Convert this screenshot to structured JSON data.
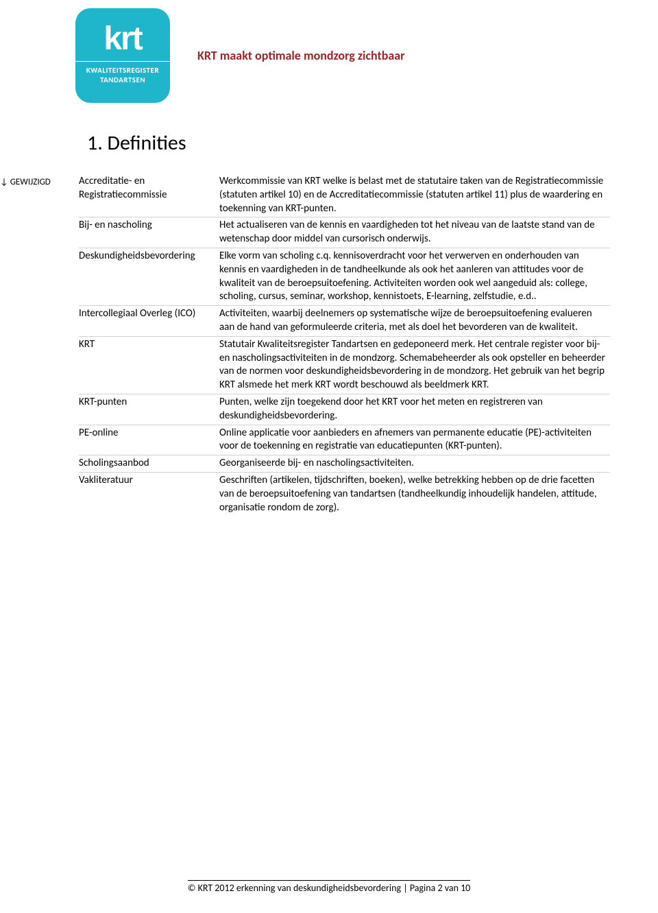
{
  "colors": {
    "tagline": "#9a2626",
    "logo_bg": "#1fb6cc",
    "border": "#d0d0d0"
  },
  "logo": {
    "short": "krt",
    "sub1": "KWALITEITSREGISTER",
    "sub2": "TANDARTSEN"
  },
  "tagline": "KRT maakt optimale mondzorg zichtbaar",
  "side_label": "↓ GEWIJZIGD",
  "heading": "1. Definities",
  "definitions": [
    {
      "term": "Accreditatie- en Registratiecommissie",
      "def": "Werkcommissie van KRT welke is belast met de statutaire taken van de Registratiecommissie (statuten artikel 10) en de Accreditatiecommissie (statuten artikel 11) plus de waardering en toekenning van KRT-punten."
    },
    {
      "term": "Bij- en nascholing",
      "def": "Het actualiseren van de kennis en vaardigheden tot het niveau van de laatste stand van de wetenschap door middel van cursorisch onderwijs."
    },
    {
      "term": "Deskundigheidsbevordering",
      "def": "Elke vorm van scholing c.q. kennisoverdracht voor het verwerven en onderhouden van kennis en vaardigheden in de tandheelkunde als ook het aanleren van attitudes voor de kwaliteit van de beroepsuitoefening. Activiteiten worden ook wel aangeduid als: college, scholing, cursus, seminar, workshop, kennistoets, E-learning, zelfstudie, e.d.."
    },
    {
      "term": "Intercollegiaal Overleg (ICO)",
      "def": "Activiteiten, waarbij deelnemers op systematische wijze de beroepsuitoefening evalueren aan de hand van geformuleerde criteria, met als doel het bevorderen van de kwaliteit."
    },
    {
      "term": "KRT",
      "def": "Statutair Kwaliteitsregister Tandartsen en gedeponeerd merk. Het centrale register voor bij- en nascholingsactiviteiten in de mondzorg. Schemabeheerder als ook opsteller en beheerder van de normen voor deskundigheidsbevordering in de mondzorg. Het gebruik van het begrip KRT alsmede het merk KRT wordt beschouwd als beeldmerk KRT."
    },
    {
      "term": "KRT-punten",
      "def": "Punten, welke zijn toegekend door het KRT voor het meten en registreren van deskundigheidsbevordering."
    },
    {
      "term": "PE-online",
      "def": "Online applicatie voor aanbieders en afnemers van permanente educatie (PE)-activiteiten voor  de toekenning en registratie van educatiepunten (KRT-punten)."
    },
    {
      "term": "Scholingsaanbod",
      "def": "Georganiseerde bij- en nascholingsactiviteiten."
    },
    {
      "term": "Vakliteratuur",
      "def": "Geschriften (artikelen, tijdschriften, boeken), welke betrekking hebben op de drie facetten van de beroepsuitoefening van tandartsen (tandheelkundig inhoudelijk handelen, attitude, organisatie rondom de zorg)."
    }
  ],
  "footer": "© KRT 2012 erkenning van deskundigheidsbevordering | Pagina 2 van 10"
}
